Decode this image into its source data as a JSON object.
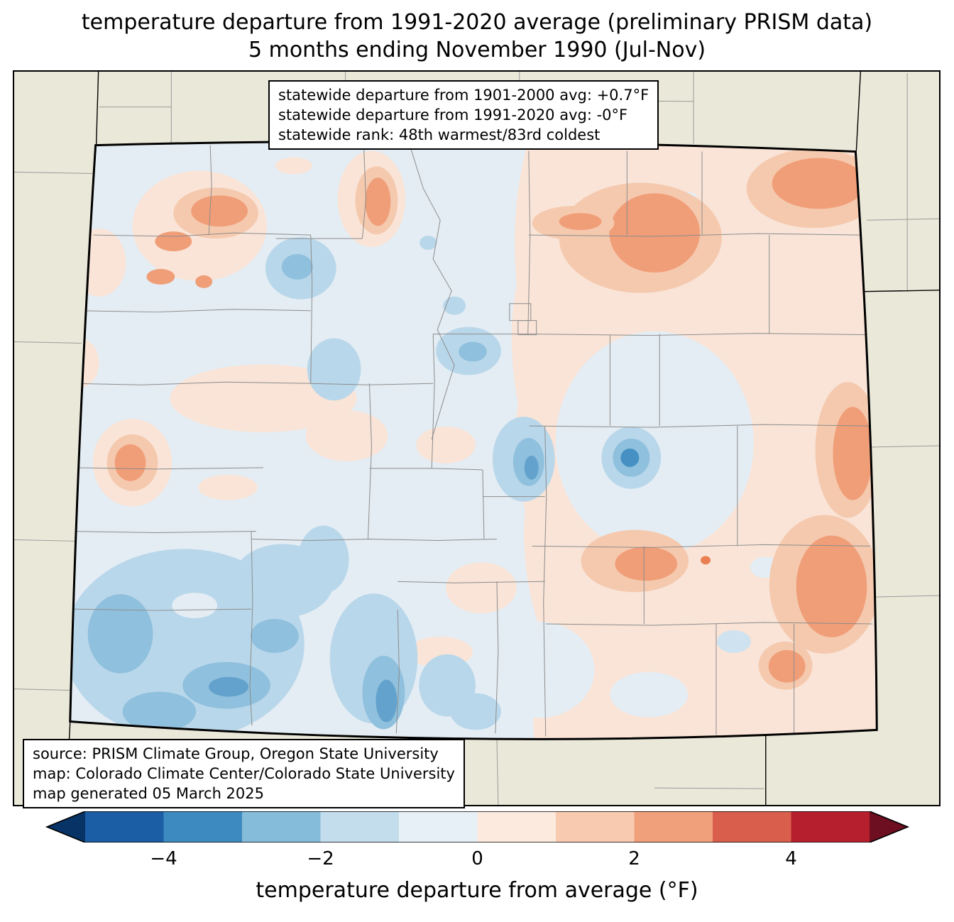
{
  "title": {
    "line1": "temperature departure from 1991-2020 average (preliminary PRISM data)",
    "line2": "5 months ending November 1990 (Jul-Nov)"
  },
  "map": {
    "stats_box": {
      "line1": "statewide departure from 1901-2000 avg: +0.7°F",
      "line2": "statewide departure from 1991-2020 avg: -0°F",
      "line3": "statewide rank: 48th warmest/83rd coldest"
    },
    "source_box": {
      "line1": "source: PRISM Climate Group, Oregon State University",
      "line2": "map: Colorado Climate Center/Colorado State University",
      "line3": "map generated 05 March 2025"
    },
    "palette": {
      "outside_region": "#eae8d8",
      "near_zero_cool": "#e4edf4",
      "near_zero_warm": "#f9e4d7",
      "warm_peach": "#f5c9ae",
      "warm_salmon": "#f09e78",
      "warm_deep": "#e97f52",
      "cool_light": "#b9d7ea",
      "cool_medium": "#8fc0dd",
      "cool_strong": "#63a2cd",
      "cool_deep": "#4690c4",
      "state_border": "#000000",
      "county_line": "#8c8c8c"
    }
  },
  "colorbar": {
    "label": "temperature departure from average (°F)",
    "range": [
      -5,
      5
    ],
    "ticks": [
      {
        "value": -4,
        "label": "−4"
      },
      {
        "value": -2,
        "label": "−2"
      },
      {
        "value": 0,
        "label": "0"
      },
      {
        "value": 2,
        "label": "2"
      },
      {
        "value": 4,
        "label": "4"
      }
    ],
    "segments": [
      "#1c5ea5",
      "#3d8ac0",
      "#85bcda",
      "#c4ddec",
      "#e7f0f6",
      "#fceade",
      "#f8cbb0",
      "#f1a07c",
      "#d95f4c",
      "#b61f2e"
    ],
    "left_arrow": "#083366",
    "right_arrow": "#6d0e21"
  }
}
